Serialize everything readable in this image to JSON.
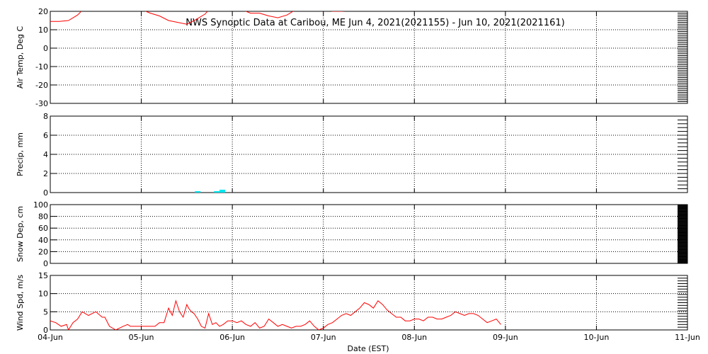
{
  "chart_data": {
    "type": "line",
    "title": "NWS Synoptic Data at Caribou, ME   Jun  4, 2021(2021155) - Jun 10, 2021(2021161)",
    "xlabel": "Date (EST)",
    "x_ticks": [
      "04-Jun",
      "05-Jun",
      "06-Jun",
      "07-Jun",
      "08-Jun",
      "09-Jun",
      "10-Jun",
      "11-Jun"
    ],
    "xlim": [
      0,
      7
    ],
    "grid": true,
    "colors": {
      "temp": "#ff0000",
      "precip": "#00e5ee",
      "wind": "#ff0000"
    },
    "panels": [
      {
        "type": "line",
        "ylabel": "Air Temp, Deg C",
        "ylim": [
          -30,
          20
        ],
        "yticks": [
          20,
          10,
          0,
          -10,
          -20,
          -30
        ],
        "series": [
          {
            "x": [
              0,
              0.1,
              0.2,
              0.3,
              0.4,
              0.5,
              0.6,
              0.7,
              0.8,
              0.9,
              1.0,
              1.1,
              1.2,
              1.3,
              1.4,
              1.5,
              1.6,
              1.7,
              1.8,
              1.9,
              2.0,
              2.1,
              2.2,
              2.3,
              2.4,
              2.5,
              2.6,
              2.7,
              2.8,
              2.9,
              3.0,
              3.1,
              3.2,
              3.3,
              3.4
            ],
            "values": [
              14.5,
              14.5,
              15.0,
              18.0,
              23.0,
              25.0,
              26.0,
              25.0,
              24.0,
              22.5,
              21.0,
              19.0,
              17.5,
              15.0,
              14.0,
              13.0,
              15.5,
              18.5,
              24.0,
              27.0,
              24.0,
              21.0,
              19.0,
              19.0,
              17.5,
              16.5,
              18.0,
              21.0,
              24.0,
              22.5,
              21.0,
              20.0,
              20.0,
              20.5,
              22.0
            ]
          }
        ]
      },
      {
        "type": "bar",
        "ylabel": "Precip, mm",
        "ylim": [
          0,
          8
        ],
        "yticks": [
          8,
          6,
          4,
          2,
          0
        ],
        "series": [
          {
            "x": [
              1.62,
              1.83,
              1.89
            ],
            "values": [
              0.1,
              0.1,
              0.3
            ]
          }
        ]
      },
      {
        "type": "line",
        "ylabel": "Snow Dep, cm",
        "ylim": [
          0,
          100
        ],
        "yticks": [
          100,
          80,
          60,
          40,
          20,
          0
        ],
        "series": []
      },
      {
        "type": "line",
        "ylabel": "Wind Spd, m/s",
        "ylim": [
          0,
          15
        ],
        "yticks": [
          15,
          10,
          5,
          0
        ],
        "series": [
          {
            "x": [
              0,
              0.06,
              0.12,
              0.18,
              0.2,
              0.25,
              0.3,
              0.35,
              0.42,
              0.5,
              0.57,
              0.6,
              0.65,
              0.72,
              0.8,
              0.85,
              0.88,
              0.92,
              0.95,
              1.0,
              1.05,
              1.1,
              1.15,
              1.2,
              1.25,
              1.3,
              1.34,
              1.38,
              1.42,
              1.46,
              1.5,
              1.52,
              1.55,
              1.58,
              1.62,
              1.66,
              1.7,
              1.74,
              1.78,
              1.82,
              1.86,
              1.9,
              1.95,
              2.0,
              2.05,
              2.1,
              2.15,
              2.2,
              2.25,
              2.3,
              2.35,
              2.4,
              2.45,
              2.5,
              2.55,
              2.6,
              2.65,
              2.7,
              2.75,
              2.8,
              2.85,
              2.9,
              2.95,
              3.0,
              3.05,
              3.1,
              3.15,
              3.2,
              3.25,
              3.3,
              3.35,
              3.4,
              3.45,
              3.5,
              3.55,
              3.6,
              3.65,
              3.7,
              3.75,
              3.8,
              3.85,
              3.9,
              3.95,
              4.0,
              4.05,
              4.1,
              4.15,
              4.2,
              4.25,
              4.3,
              4.35,
              4.4,
              4.45,
              4.5,
              4.55,
              4.6,
              4.65,
              4.7,
              4.75,
              4.8,
              4.85,
              4.9,
              4.95
            ],
            "values": [
              2.5,
              2.0,
              1.0,
              1.5,
              0.0,
              2.0,
              3.0,
              5.0,
              4.0,
              5.0,
              3.5,
              3.5,
              1.0,
              0.0,
              1.0,
              1.5,
              1.0,
              1.0,
              1.0,
              1.0,
              1.0,
              1.0,
              1.0,
              2.0,
              2.0,
              6.0,
              4.0,
              8.0,
              5.0,
              3.5,
              7.0,
              6.0,
              5.0,
              4.5,
              3.0,
              1.0,
              0.5,
              4.5,
              1.5,
              2.0,
              1.0,
              1.5,
              2.5,
              2.5,
              2.0,
              2.5,
              1.5,
              1.0,
              2.0,
              0.5,
              1.0,
              3.0,
              2.0,
              1.0,
              1.5,
              1.0,
              0.5,
              1.0,
              1.0,
              1.5,
              2.5,
              1.0,
              0.0,
              0.5,
              1.5,
              2.0,
              3.0,
              4.0,
              4.5,
              4.0,
              5.0,
              6.0,
              7.5,
              7.0,
              6.0,
              8.0,
              7.0,
              5.5,
              4.5,
              3.5,
              3.5,
              2.5,
              2.5,
              3.0,
              3.0,
              2.5,
              3.5,
              3.5,
              3.0,
              3.0,
              3.5,
              4.0,
              5.0,
              4.5,
              4.0,
              4.5,
              4.5,
              4.0,
              3.0,
              2.0,
              2.5,
              3.0,
              1.5
            ]
          }
        ]
      }
    ]
  }
}
